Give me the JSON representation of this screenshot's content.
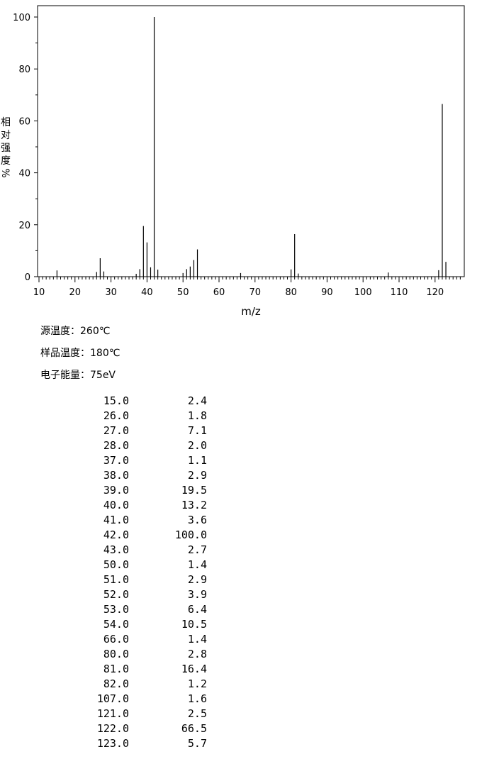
{
  "chart_data": {
    "type": "bar",
    "xlabel": "m/z",
    "ylabel": "相对强度%",
    "ylabel_chars": [
      "相",
      "对",
      "强",
      "度",
      "%"
    ],
    "xlim": [
      10,
      127
    ],
    "ylim": [
      0,
      100
    ],
    "xticks": [
      10,
      20,
      30,
      40,
      50,
      60,
      70,
      80,
      90,
      100,
      110,
      120
    ],
    "yticks": [
      0,
      20,
      40,
      60,
      80,
      100
    ],
    "grid": false,
    "peaks": [
      {
        "mz": "15.0",
        "intensity": "2.4"
      },
      {
        "mz": "26.0",
        "intensity": "1.8"
      },
      {
        "mz": "27.0",
        "intensity": "7.1"
      },
      {
        "mz": "28.0",
        "intensity": "2.0"
      },
      {
        "mz": "37.0",
        "intensity": "1.1"
      },
      {
        "mz": "38.0",
        "intensity": "2.9"
      },
      {
        "mz": "39.0",
        "intensity": "19.5"
      },
      {
        "mz": "40.0",
        "intensity": "13.2"
      },
      {
        "mz": "41.0",
        "intensity": "3.6"
      },
      {
        "mz": "42.0",
        "intensity": "100.0"
      },
      {
        "mz": "43.0",
        "intensity": "2.7"
      },
      {
        "mz": "50.0",
        "intensity": "1.4"
      },
      {
        "mz": "51.0",
        "intensity": "2.9"
      },
      {
        "mz": "52.0",
        "intensity": "3.9"
      },
      {
        "mz": "53.0",
        "intensity": "6.4"
      },
      {
        "mz": "54.0",
        "intensity": "10.5"
      },
      {
        "mz": "66.0",
        "intensity": "1.4"
      },
      {
        "mz": "80.0",
        "intensity": "2.8"
      },
      {
        "mz": "81.0",
        "intensity": "16.4"
      },
      {
        "mz": "82.0",
        "intensity": "1.2"
      },
      {
        "mz": "107.0",
        "intensity": "1.6"
      },
      {
        "mz": "121.0",
        "intensity": "2.5"
      },
      {
        "mz": "122.0",
        "intensity": "66.5"
      },
      {
        "mz": "123.0",
        "intensity": "5.7"
      }
    ]
  },
  "meta": {
    "source_temp": "源温度：260℃",
    "sample_temp": "样品温度：180℃",
    "electron_energy": "电子能量：75eV"
  }
}
